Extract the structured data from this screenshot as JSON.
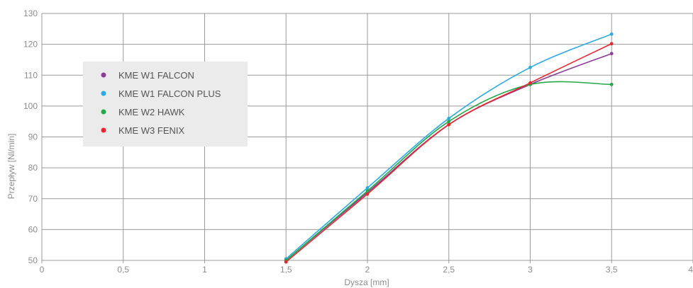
{
  "chart_data": {
    "type": "line",
    "title": "",
    "xlabel": "Dysza [mm]",
    "ylabel": "Przepływ [Nl/min]",
    "xlim": [
      0,
      4
    ],
    "ylim": [
      50,
      130
    ],
    "x_ticks": [
      0,
      0.5,
      1,
      1.5,
      2,
      2.5,
      3,
      3.5,
      4
    ],
    "x_tick_labels": [
      "0",
      "0,5",
      "1",
      "1,5",
      "2",
      "2,5",
      "3",
      "3,5",
      "4"
    ],
    "y_ticks": [
      50,
      60,
      70,
      80,
      90,
      100,
      110,
      120,
      130
    ],
    "y_tick_labels": [
      "50",
      "60",
      "70",
      "80",
      "90",
      "100",
      "110",
      "120",
      "130"
    ],
    "grid": true,
    "legend_position": "upper-left",
    "x": [
      1.5,
      2,
      2.5,
      3,
      3.5
    ],
    "series": [
      {
        "name": "KME W1 FALCON",
        "color": "#8e3b96",
        "values": [
          50,
          72,
          94,
          107,
          117
        ]
      },
      {
        "name": "KME W1 FALCON PLUS",
        "color": "#29abe2",
        "values": [
          50.5,
          73.5,
          96,
          112.5,
          123.3
        ]
      },
      {
        "name": "KME W2 HAWK",
        "color": "#22a847",
        "values": [
          50,
          72.5,
          95,
          107,
          107
        ]
      },
      {
        "name": "KME W3 FENIX",
        "color": "#e8262e",
        "values": [
          49.5,
          71.5,
          94,
          107.5,
          120.2
        ]
      }
    ]
  }
}
